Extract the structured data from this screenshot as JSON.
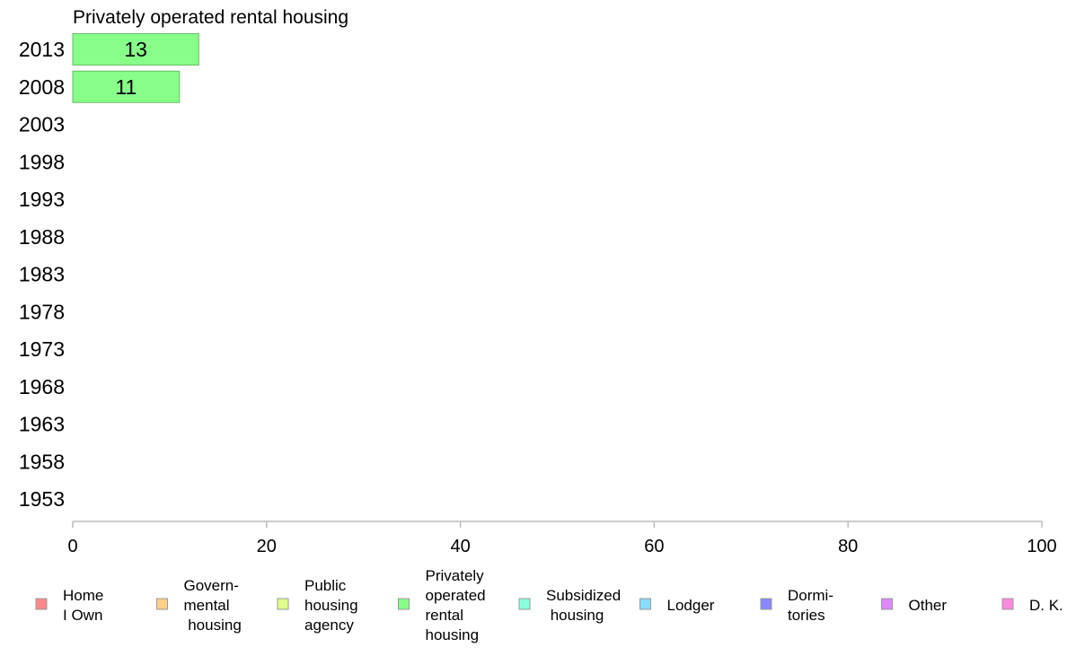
{
  "chart_data": {
    "type": "bar",
    "orientation": "horizontal",
    "title": "Privately operated rental housing",
    "categories": [
      "2013",
      "2008",
      "2003",
      "1998",
      "1993",
      "1988",
      "1983",
      "1978",
      "1973",
      "1968",
      "1963",
      "1958",
      "1953"
    ],
    "series": [
      {
        "name": "Privately operated rental housing",
        "values": [
          13,
          11,
          null,
          null,
          null,
          null,
          null,
          null,
          null,
          null,
          null,
          null,
          null
        ],
        "color": "#88ff88"
      }
    ],
    "xlim": [
      0,
      100
    ],
    "xticks": [
      0,
      20,
      40,
      60,
      80,
      100
    ],
    "xlabel": "",
    "ylabel": "",
    "grid": false,
    "legend_position": "bottom",
    "legend": [
      {
        "label": "Home\nI Own",
        "color": "#ff8888"
      },
      {
        "label": "Govern-\nmental\n housing",
        "color": "#ffd088"
      },
      {
        "label": "Public\nhousing\nagency",
        "color": "#e0ff88"
      },
      {
        "label": "Privately\noperated\nrental\nhousing",
        "color": "#88ff88"
      },
      {
        "label": "Subsidized\n housing",
        "color": "#88ffdd"
      },
      {
        "label": "Lodger",
        "color": "#88ddff"
      },
      {
        "label": "Dormi-\ntories",
        "color": "#8888ff"
      },
      {
        "label": "Other",
        "color": "#dd88ff"
      },
      {
        "label": "D. K.",
        "color": "#ff88dd"
      }
    ]
  }
}
